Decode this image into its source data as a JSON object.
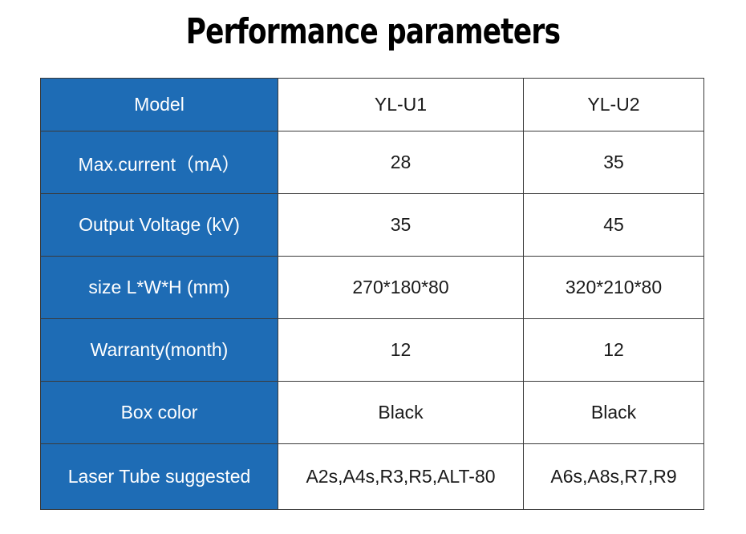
{
  "title": "Performance parameters",
  "table": {
    "rows": [
      {
        "label": "Model",
        "yl_u1": "YL-U1",
        "yl_u2": "YL-U2"
      },
      {
        "label": "Max.current（mA）",
        "yl_u1": "28",
        "yl_u2": "35"
      },
      {
        "label": "Output Voltage (kV)",
        "yl_u1": "35",
        "yl_u2": "45"
      },
      {
        "label": "size L*W*H (mm)",
        "yl_u1": "270*180*80",
        "yl_u2": "320*210*80"
      },
      {
        "label": "Warranty(month)",
        "yl_u1": "12",
        "yl_u2": "12"
      },
      {
        "label": "Box color",
        "yl_u1": "Black",
        "yl_u2": "Black"
      },
      {
        "label": "Laser Tube suggested",
        "yl_u1": "A2s,A4s,R3,R5,ALT-80",
        "yl_u2": "A6s,A8s,R7,R9"
      }
    ]
  },
  "colors": {
    "label_background": "#1e6cb5",
    "label_text": "#ffffff",
    "value_text": "#1a1a1a",
    "border": "#3a3a3a"
  }
}
